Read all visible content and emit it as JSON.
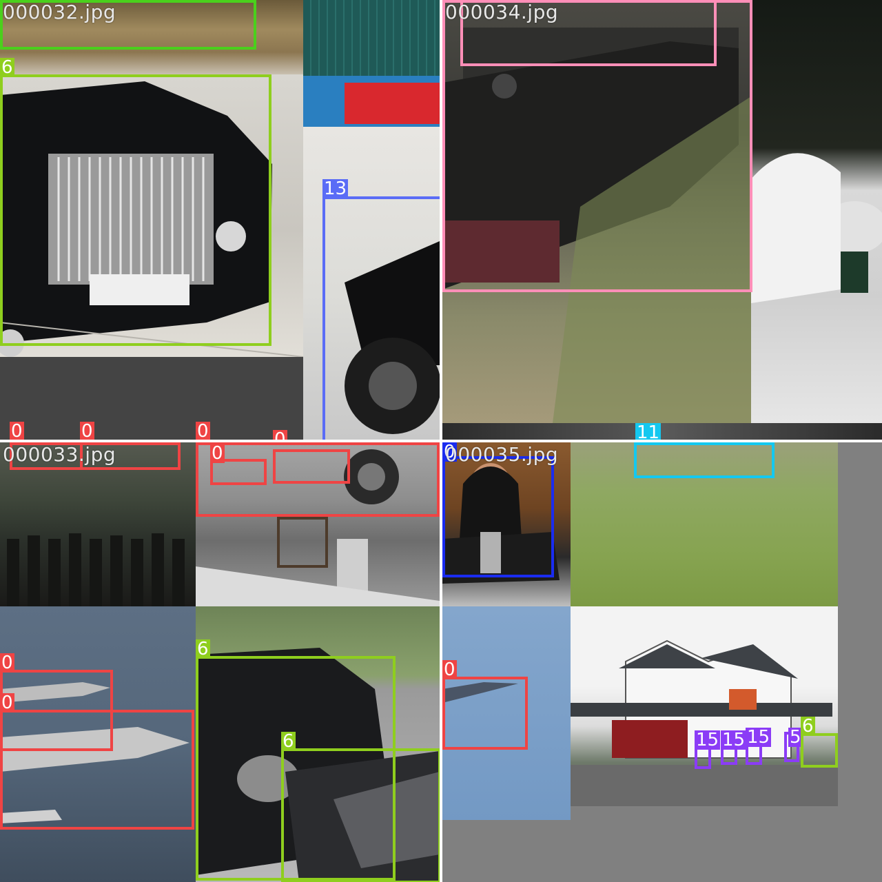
{
  "mosaic": {
    "tiles": [
      {
        "filename": "000032.jpg"
      },
      {
        "filename": "000034.jpg"
      },
      {
        "filename": "000033.jpg"
      },
      {
        "filename": "000035.jpg"
      }
    ]
  },
  "class_colors": {
    "0": "#ef4444",
    "6": "#8fce1e",
    "11": "#14c8f0",
    "13": "#5a6cf6",
    "15": "#8b3cf6",
    "person": "#1a2cf0",
    "pink": "#ff8fb8",
    "green": "#4ad01c"
  },
  "labels": {
    "t32_car": "6",
    "t32_moto": "13",
    "t32_bottom_a": "0",
    "t32_bottom_b": "0",
    "t32_bottom_c": "0",
    "t32_bottom_d": "0",
    "t33_a": "0",
    "t33_b": "0",
    "t33_jet1": "0",
    "t33_jet2": "0",
    "t33_car1": "6",
    "t33_car2": "6",
    "t34_top": "11",
    "t35_jet": "0",
    "t35_person": "0",
    "t35_pot1": "15",
    "t35_pot2": "15",
    "t35_pot3": "15",
    "t35_pot4": "5",
    "t35_car": "6"
  }
}
